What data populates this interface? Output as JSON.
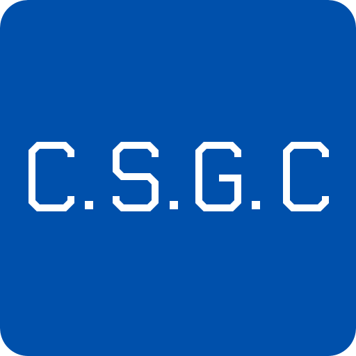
{
  "app_icon": {
    "wordmark": "C.S.G.C",
    "logo_letters": [
      "C",
      "S",
      "G",
      "C"
    ],
    "background_color": "#0050AB",
    "foreground_color": "#FFFFFF"
  }
}
